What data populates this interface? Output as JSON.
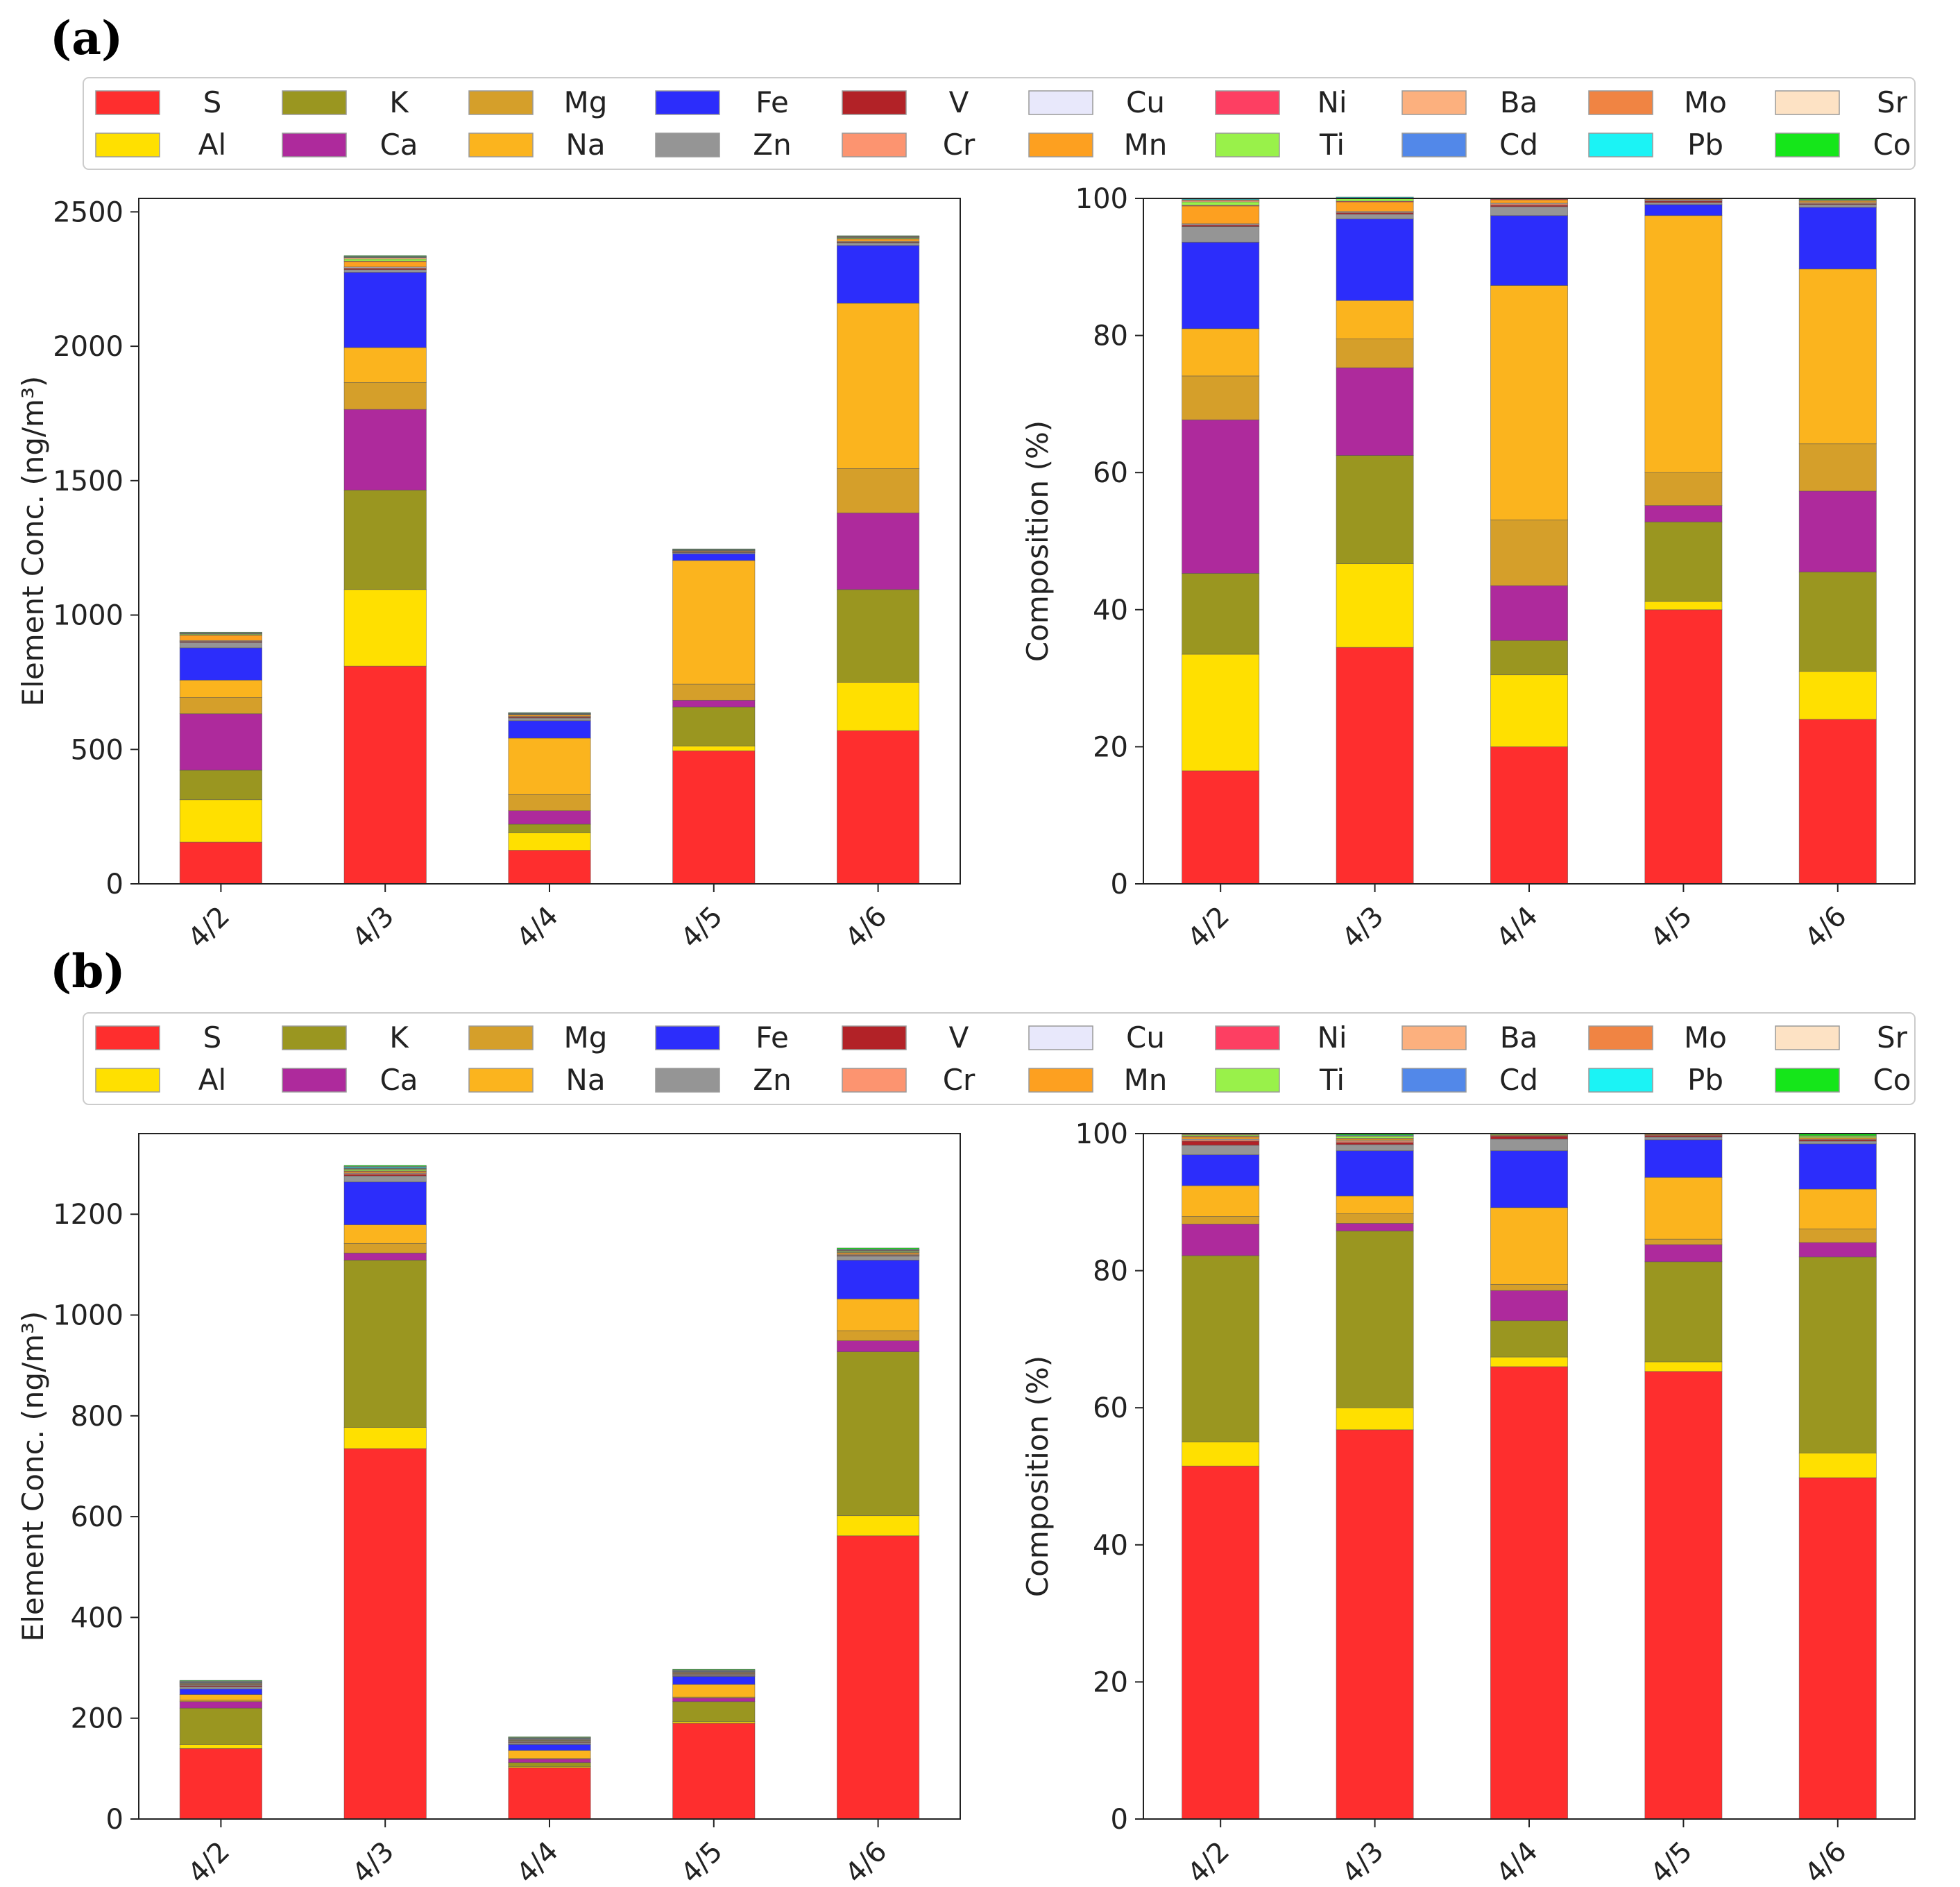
{
  "panels": [
    {
      "label": "(a)",
      "legend_rows": [
        [
          "S",
          "K",
          "Mg",
          "Fe",
          "V",
          "Cu",
          "Ni",
          "Ba",
          "Mo",
          "Sr"
        ],
        [
          "Al",
          "Ca",
          "Na",
          "Zn",
          "Cr",
          "Mn",
          "Ti",
          "Cd",
          "Pb",
          "Co"
        ]
      ]
    },
    {
      "label": "(b)",
      "legend_rows": [
        [
          "S",
          "K",
          "Mg",
          "Fe",
          "V",
          "Cu",
          "Ni",
          "Ba",
          "Mo",
          "Sr"
        ],
        [
          "Al",
          "Ca",
          "Na",
          "Zn",
          "Cr",
          "Mn",
          "Ti",
          "Cd",
          "Pb",
          "Co"
        ]
      ]
    }
  ],
  "element_colors": {
    "S": "#fe2e2e",
    "Al": "#ffe000",
    "K": "#9a9620",
    "Ca": "#ae2a9c",
    "Mg": "#d59f2a",
    "Na": "#fbb41e",
    "Fe": "#2c2dfb",
    "Zn": "#959595",
    "V": "#b22227",
    "Cr": "#fc9470",
    "Cu": "#e8e8fb",
    "Mn": "#fda020",
    "Ni": "#fd3f62",
    "Ti": "#99f14a",
    "Ba": "#fcb07e",
    "Cd": "#5288e9",
    "Mo": "#f08443",
    "Pb": "#1bf3f5",
    "Sr": "#fde2c4",
    "Co": "#15e61a"
  },
  "chart_data": [
    {
      "panel": "(a)",
      "type": "bar",
      "stacked": true,
      "title": "",
      "xlabel": "",
      "ylabel": "Element Conc. (ng/m³)",
      "ylim": [
        0,
        2550
      ],
      "yticks": [
        0,
        500,
        1000,
        1500,
        2000,
        2500
      ],
      "categories": [
        "4/2",
        "4/3",
        "4/4",
        "4/5",
        "4/6"
      ],
      "series": [
        {
          "name": "S",
          "values": [
            155,
            810,
            125,
            495,
            570
          ]
        },
        {
          "name": "Al",
          "values": [
            158,
            285,
            65,
            18,
            180
          ]
        },
        {
          "name": "K",
          "values": [
            110,
            370,
            32,
            145,
            345
          ]
        },
        {
          "name": "Ca",
          "values": [
            210,
            300,
            50,
            25,
            285
          ]
        },
        {
          "name": "Mg",
          "values": [
            60,
            100,
            60,
            60,
            165
          ]
        },
        {
          "name": "Na",
          "values": [
            65,
            130,
            210,
            460,
            615
          ]
        },
        {
          "name": "Fe",
          "values": [
            120,
            280,
            65,
            25,
            215
          ]
        },
        {
          "name": "Zn",
          "values": [
            20,
            10,
            10,
            4,
            10
          ]
        },
        {
          "name": "V",
          "values": [
            3,
            4,
            3,
            1,
            2
          ]
        },
        {
          "name": "Cr",
          "values": [
            2,
            3,
            2,
            1,
            2
          ]
        },
        {
          "name": "Cu",
          "values": [
            2,
            3,
            1,
            1,
            2
          ]
        },
        {
          "name": "Mn",
          "values": [
            20,
            20,
            5,
            3,
            8
          ]
        },
        {
          "name": "Ni",
          "values": [
            1,
            2,
            1,
            1,
            1
          ]
        },
        {
          "name": "Ti",
          "values": [
            3,
            8,
            2,
            1,
            3
          ]
        },
        {
          "name": "Ba",
          "values": [
            2,
            4,
            1,
            1,
            2
          ]
        },
        {
          "name": "Cd",
          "values": [
            1,
            1,
            1,
            1,
            1
          ]
        },
        {
          "name": "Mo",
          "values": [
            1,
            2,
            1,
            1,
            2
          ]
        },
        {
          "name": "Pb",
          "values": [
            1,
            2,
            1,
            1,
            1
          ]
        },
        {
          "name": "Sr",
          "values": [
            1,
            1,
            1,
            1,
            1
          ]
        },
        {
          "name": "Co",
          "values": [
            1,
            2,
            1,
            1,
            1
          ]
        }
      ]
    },
    {
      "panel": "(a)",
      "type": "bar",
      "stacked": true,
      "title": "",
      "xlabel": "",
      "ylabel": "Composition (%)",
      "ylim": [
        0,
        100
      ],
      "yticks": [
        0,
        20,
        40,
        60,
        80,
        100
      ],
      "categories": [
        "4/2",
        "4/3",
        "4/4",
        "4/5",
        "4/6"
      ],
      "series": [
        {
          "name": "S",
          "values": [
            16.5,
            34.5,
            20,
            40,
            24
          ]
        },
        {
          "name": "Al",
          "values": [
            17,
            12.2,
            10.5,
            1.2,
            7
          ]
        },
        {
          "name": "K",
          "values": [
            11.8,
            15.8,
            5,
            11.6,
            14.5
          ]
        },
        {
          "name": "Ca",
          "values": [
            22.4,
            12.8,
            8,
            2.4,
            11.8
          ]
        },
        {
          "name": "Mg",
          "values": [
            6.4,
            4.2,
            9.6,
            4.8,
            6.9
          ]
        },
        {
          "name": "Na",
          "values": [
            6.9,
            5.6,
            34.2,
            37.5,
            25.5
          ]
        },
        {
          "name": "Fe",
          "values": [
            12.6,
            11.9,
            10.2,
            1.6,
            9
          ]
        },
        {
          "name": "Zn",
          "values": [
            2.3,
            0.7,
            1.3,
            0.3,
            0.4
          ]
        },
        {
          "name": "V",
          "values": [
            0.2,
            0.2,
            0.2,
            0.2,
            0.1
          ]
        },
        {
          "name": "Cr",
          "values": [
            0.1,
            0.1,
            0.2,
            0.1,
            0.1
          ]
        },
        {
          "name": "Cu",
          "values": [
            0.1,
            0.1,
            0.1,
            0.1,
            0.1
          ]
        },
        {
          "name": "Mn",
          "values": [
            2.6,
            1.4,
            0.5,
            0.1,
            0.2
          ]
        },
        {
          "name": "Ni",
          "values": [
            0.1,
            0.1,
            0.1,
            0.0,
            0.0
          ]
        },
        {
          "name": "Ti",
          "values": [
            0.5,
            0.4,
            0.1,
            0.0,
            0.1
          ]
        },
        {
          "name": "Ba",
          "values": [
            0.2,
            0.1,
            0.0,
            0.0,
            0.1
          ]
        },
        {
          "name": "Cd",
          "values": [
            0.0,
            0.0,
            0.0,
            0.0,
            0.0
          ]
        },
        {
          "name": "Mo",
          "values": [
            0.1,
            0.0,
            0.0,
            0.0,
            0.0
          ]
        },
        {
          "name": "Pb",
          "values": [
            0.1,
            0.1,
            0.0,
            0.0,
            0.0
          ]
        },
        {
          "name": "Sr",
          "values": [
            0.0,
            0.0,
            0.0,
            0.0,
            0.0
          ]
        },
        {
          "name": "Co",
          "values": [
            0.0,
            0.0,
            0.0,
            0.0,
            0.1
          ]
        }
      ]
    },
    {
      "panel": "(b)",
      "type": "bar",
      "stacked": true,
      "title": "",
      "xlabel": "",
      "ylabel": "Element Conc. (ng/m³)",
      "ylim": [
        0,
        1360
      ],
      "yticks": [
        0,
        200,
        400,
        600,
        800,
        1000,
        1200
      ],
      "categories": [
        "4/2",
        "4/3",
        "4/4",
        "4/5",
        "4/6"
      ],
      "series": [
        {
          "name": "S",
          "values": [
            140,
            735,
            102,
            190,
            562
          ]
        },
        {
          "name": "Al",
          "values": [
            8,
            42,
            2,
            3,
            40
          ]
        },
        {
          "name": "K",
          "values": [
            72,
            332,
            8,
            40,
            325
          ]
        },
        {
          "name": "Ca",
          "values": [
            13,
            14,
            7,
            7,
            22
          ]
        },
        {
          "name": "Mg",
          "values": [
            3,
            19,
            1,
            2,
            20
          ]
        },
        {
          "name": "Na",
          "values": [
            11,
            37,
            16,
            25,
            63
          ]
        },
        {
          "name": "Fe",
          "values": [
            11,
            85,
            12,
            16,
            77
          ]
        },
        {
          "name": "Zn",
          "values": [
            4,
            12,
            3,
            2,
            8
          ]
        },
        {
          "name": "V",
          "values": [
            2,
            3,
            1,
            1,
            1
          ]
        },
        {
          "name": "Cr",
          "values": [
            1,
            2,
            1,
            1,
            1
          ]
        },
        {
          "name": "Cu",
          "values": [
            1,
            1,
            1,
            1,
            1
          ]
        },
        {
          "name": "Mn",
          "values": [
            1,
            3,
            1,
            1,
            3
          ]
        },
        {
          "name": "Ni",
          "values": [
            1,
            1,
            1,
            1,
            1
          ]
        },
        {
          "name": "Ti",
          "values": [
            1,
            3,
            1,
            1,
            2
          ]
        },
        {
          "name": "Ba",
          "values": [
            1,
            1,
            1,
            1,
            1
          ]
        },
        {
          "name": "Cd",
          "values": [
            1,
            1,
            1,
            1,
            1
          ]
        },
        {
          "name": "Mo",
          "values": [
            1,
            1,
            1,
            1,
            1
          ]
        },
        {
          "name": "Pb",
          "values": [
            1,
            2,
            1,
            1,
            1
          ]
        },
        {
          "name": "Sr",
          "values": [
            1,
            1,
            1,
            1,
            1
          ]
        },
        {
          "name": "Co",
          "values": [
            1,
            2,
            1,
            1,
            2
          ]
        }
      ]
    },
    {
      "panel": "(b)",
      "type": "bar",
      "stacked": true,
      "title": "",
      "xlabel": "",
      "ylabel": "Composition (%)",
      "ylim": [
        0,
        100
      ],
      "yticks": [
        0,
        20,
        40,
        60,
        80,
        100
      ],
      "categories": [
        "4/2",
        "4/3",
        "4/4",
        "4/5",
        "4/6"
      ],
      "series": [
        {
          "name": "S",
          "values": [
            51.5,
            56.8,
            66,
            65.3,
            49.8
          ]
        },
        {
          "name": "Al",
          "values": [
            3.5,
            3.2,
            1.4,
            1.4,
            3.6
          ]
        },
        {
          "name": "K",
          "values": [
            27.2,
            25.8,
            5.3,
            14.6,
            28.6
          ]
        },
        {
          "name": "Ca",
          "values": [
            4.6,
            1.1,
            4.4,
            2.5,
            2.1
          ]
        },
        {
          "name": "Mg",
          "values": [
            1.1,
            1.4,
            0.9,
            0.8,
            2
          ]
        },
        {
          "name": "Na",
          "values": [
            4.5,
            2.6,
            11.2,
            9,
            5.8
          ]
        },
        {
          "name": "Fe",
          "values": [
            4.5,
            6.6,
            8.3,
            5.5,
            6.6
          ]
        },
        {
          "name": "Zn",
          "values": [
            1.4,
            0.9,
            1.7,
            0.4,
            0.4
          ]
        },
        {
          "name": "V",
          "values": [
            0.6,
            0.3,
            0.4,
            0.2,
            0.2
          ]
        },
        {
          "name": "Cr",
          "values": [
            0.2,
            0.2,
            0.1,
            0.1,
            0.1
          ]
        },
        {
          "name": "Cu",
          "values": [
            0.1,
            0.1,
            0.0,
            0.0,
            0.0
          ]
        },
        {
          "name": "Mn",
          "values": [
            0.3,
            0.2,
            0.1,
            0.1,
            0.2
          ]
        },
        {
          "name": "Ni",
          "values": [
            0.1,
            0.1,
            0.0,
            0.0,
            0.0
          ]
        },
        {
          "name": "Ti",
          "values": [
            0.2,
            0.3,
            0.1,
            0.1,
            0.2
          ]
        },
        {
          "name": "Ba",
          "values": [
            0.1,
            0.1,
            0.0,
            0.0,
            0.1
          ]
        },
        {
          "name": "Cd",
          "values": [
            0.0,
            0.0,
            0.0,
            0.0,
            0.0
          ]
        },
        {
          "name": "Mo",
          "values": [
            0.0,
            0.0,
            0.0,
            0.0,
            0.0
          ]
        },
        {
          "name": "Pb",
          "values": [
            0.1,
            0.1,
            0.0,
            0.0,
            0.0
          ]
        },
        {
          "name": "Sr",
          "values": [
            0.0,
            0.0,
            0.0,
            0.0,
            0.0
          ]
        },
        {
          "name": "Co",
          "values": [
            0.0,
            0.2,
            0.0,
            0.0,
            0.3
          ]
        }
      ]
    }
  ]
}
